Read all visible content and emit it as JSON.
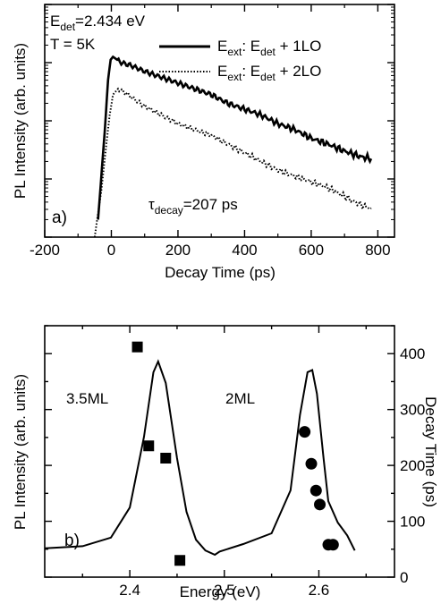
{
  "chart_data": [
    {
      "panel": "a",
      "type": "line",
      "panel_label": "a)",
      "xlabel": "Decay Time (ps)",
      "ylabel": "PL Intensity (arb. units)",
      "xlim": [
        -200,
        850
      ],
      "xticks": [
        -200,
        0,
        200,
        400,
        600,
        800
      ],
      "y_scale": "log",
      "y_log_range": [
        0,
        4
      ],
      "y_tick_labels_shown": false,
      "grid": false,
      "legend_position": "top-right",
      "annotations": {
        "edet_main": "E",
        "edet_sub": "det",
        "edet_rest": "=2.434 eV",
        "temperature": "T = 5K",
        "tau_main": "τ",
        "tau_sub": "decay",
        "tau_rest": "=207 ps"
      },
      "series": [
        {
          "legend": {
            "pre": "E",
            "sub1": "ext",
            "mid": ":  E",
            "sub2": "det",
            "post": " + 1LO"
          },
          "style": "solid",
          "color": "#000000",
          "points": [
            [
              -40,
              0.3
            ],
            [
              -20,
              1.8
            ],
            [
              -10,
              2.7
            ],
            [
              -2,
              3.05
            ],
            [
              5,
              3.1
            ],
            [
              30,
              3.0
            ],
            [
              60,
              2.95
            ],
            [
              100,
              2.85
            ],
            [
              150,
              2.75
            ],
            [
              200,
              2.65
            ],
            [
              250,
              2.55
            ],
            [
              300,
              2.45
            ],
            [
              350,
              2.3
            ],
            [
              400,
              2.2
            ],
            [
              450,
              2.1
            ],
            [
              500,
              1.95
            ],
            [
              550,
              1.85
            ],
            [
              600,
              1.7
            ],
            [
              650,
              1.6
            ],
            [
              700,
              1.48
            ],
            [
              750,
              1.38
            ],
            [
              780,
              1.35
            ]
          ]
        },
        {
          "legend": {
            "pre": "E",
            "sub1": "ext",
            "mid": ":  E",
            "sub2": "det",
            "post": " + 2LO"
          },
          "style": "dotted",
          "color": "#000000",
          "points": [
            [
              -50,
              0.0
            ],
            [
              -30,
              0.8
            ],
            [
              -15,
              1.6
            ],
            [
              -5,
              2.1
            ],
            [
              5,
              2.45
            ],
            [
              20,
              2.55
            ],
            [
              50,
              2.45
            ],
            [
              100,
              2.25
            ],
            [
              150,
              2.1
            ],
            [
              200,
              1.95
            ],
            [
              250,
              1.85
            ],
            [
              300,
              1.75
            ],
            [
              350,
              1.6
            ],
            [
              400,
              1.45
            ],
            [
              450,
              1.3
            ],
            [
              500,
              1.15
            ],
            [
              550,
              1.05
            ],
            [
              600,
              0.95
            ],
            [
              650,
              0.85
            ],
            [
              700,
              0.7
            ],
            [
              750,
              0.55
            ],
            [
              780,
              0.5
            ]
          ]
        }
      ]
    },
    {
      "panel": "b",
      "type": "line",
      "panel_label": "b)",
      "xlabel": "Energy (eV)",
      "ylabel": "PL Intensity (arb. units)",
      "ylabel_right": "Decay Time (ps)",
      "xlim": [
        2.31,
        2.68
      ],
      "xticks": [
        2.4,
        2.5,
        2.6
      ],
      "xtick_labels": [
        "2.4",
        "2.5",
        "2.6"
      ],
      "ylim_right": [
        0,
        450
      ],
      "yticks_right": [
        0,
        100,
        200,
        300,
        400
      ],
      "yticks_right_labels": [
        "0",
        "100",
        "200",
        "300",
        "400"
      ],
      "grid": false,
      "annotations": {
        "peak_left": "3.5ML",
        "peak_right": "2ML"
      },
      "series": [
        {
          "type": "line",
          "color": "#000000",
          "y_units": "relative intensity (0–1)",
          "points": [
            [
              2.31,
              0.03
            ],
            [
              2.35,
              0.04
            ],
            [
              2.38,
              0.08
            ],
            [
              2.4,
              0.22
            ],
            [
              2.415,
              0.55
            ],
            [
              2.425,
              0.85
            ],
            [
              2.43,
              0.9
            ],
            [
              2.438,
              0.8
            ],
            [
              2.45,
              0.45
            ],
            [
              2.46,
              0.2
            ],
            [
              2.47,
              0.07
            ],
            [
              2.48,
              0.02
            ],
            [
              2.49,
              0.0
            ],
            [
              2.495,
              0.015
            ],
            [
              2.52,
              0.05
            ],
            [
              2.55,
              0.1
            ],
            [
              2.57,
              0.3
            ],
            [
              2.58,
              0.65
            ],
            [
              2.588,
              0.85
            ],
            [
              2.593,
              0.86
            ],
            [
              2.598,
              0.75
            ],
            [
              2.605,
              0.45
            ],
            [
              2.61,
              0.25
            ],
            [
              2.62,
              0.15
            ],
            [
              2.63,
              0.09
            ],
            [
              2.638,
              0.02
            ]
          ]
        },
        {
          "type": "scatter",
          "marker": "square",
          "axis": "right",
          "points": [
            [
              2.408,
              412
            ],
            [
              2.42,
              235
            ],
            [
              2.438,
              213
            ],
            [
              2.453,
              30
            ]
          ]
        },
        {
          "type": "scatter",
          "marker": "circle",
          "axis": "right",
          "points": [
            [
              2.585,
              260
            ],
            [
              2.592,
              203
            ],
            [
              2.597,
              155
            ],
            [
              2.601,
              130
            ],
            [
              2.61,
              58
            ],
            [
              2.615,
              58
            ]
          ]
        }
      ]
    }
  ]
}
